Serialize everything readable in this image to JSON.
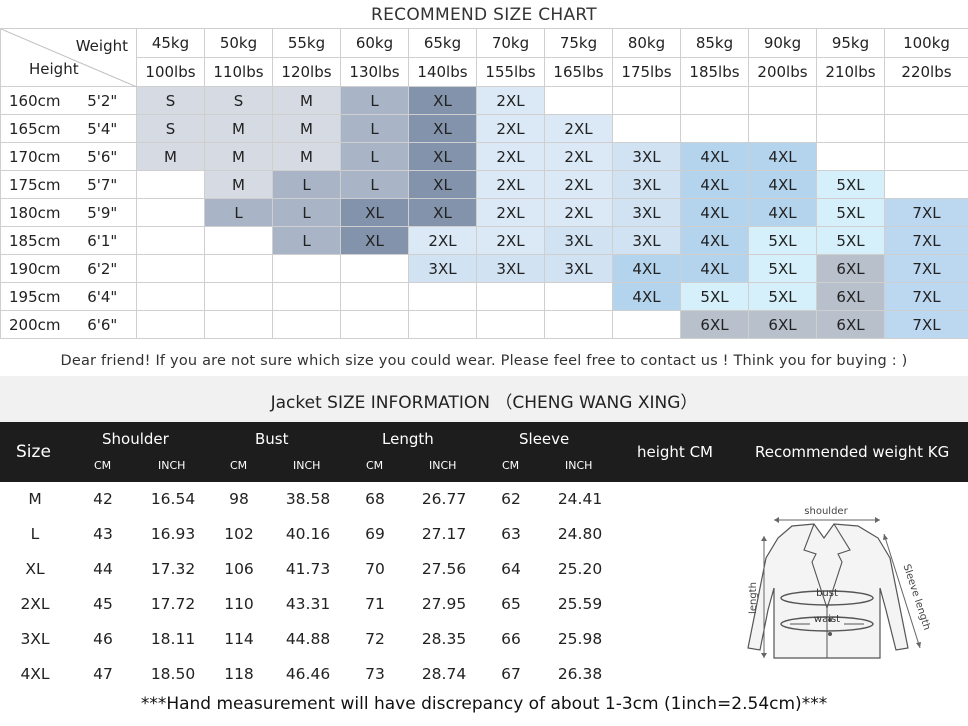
{
  "recommend": {
    "title": "RECOMMEND SIZE CHART",
    "weight_label": "Weight",
    "height_label": "Height",
    "weights_kg": [
      "45kg",
      "50kg",
      "55kg",
      "60kg",
      "65kg",
      "70kg",
      "75kg",
      "80kg",
      "85kg",
      "90kg",
      "95kg",
      "100kg"
    ],
    "weights_lbs": [
      "100lbs",
      "110lbs",
      "120lbs",
      "130lbs",
      "140lbs",
      "155lbs",
      "165lbs",
      "175lbs",
      "185lbs",
      "200lbs",
      "210lbs",
      "220lbs"
    ],
    "rows": [
      {
        "cm": "160cm",
        "ft": "5'2\"",
        "cells": [
          "S",
          "S",
          "M",
          "L",
          "XL",
          "2XL",
          "",
          "",
          "",
          "",
          "",
          ""
        ]
      },
      {
        "cm": "165cm",
        "ft": "5'4\"",
        "cells": [
          "S",
          "M",
          "M",
          "L",
          "XL",
          "2XL",
          "2XL",
          "",
          "",
          "",
          "",
          ""
        ]
      },
      {
        "cm": "170cm",
        "ft": "5'6\"",
        "cells": [
          "M",
          "M",
          "M",
          "L",
          "XL",
          "2XL",
          "2XL",
          "3XL",
          "4XL",
          "4XL",
          "",
          ""
        ]
      },
      {
        "cm": "175cm",
        "ft": "5'7\"",
        "cells": [
          "",
          "M",
          "L",
          "L",
          "XL",
          "2XL",
          "2XL",
          "3XL",
          "4XL",
          "4XL",
          "5XL",
          ""
        ]
      },
      {
        "cm": "180cm",
        "ft": "5'9\"",
        "cells": [
          "",
          "L",
          "L",
          "XL",
          "XL",
          "2XL",
          "2XL",
          "3XL",
          "4XL",
          "4XL",
          "5XL",
          "7XL"
        ]
      },
      {
        "cm": "185cm",
        "ft": "6'1\"",
        "cells": [
          "",
          "",
          "L",
          "XL",
          "2XL",
          "2XL",
          "3XL",
          "3XL",
          "4XL",
          "5XL",
          "5XL",
          "7XL"
        ]
      },
      {
        "cm": "190cm",
        "ft": "6'2\"",
        "cells": [
          "",
          "",
          "",
          "",
          "3XL",
          "3XL",
          "3XL",
          "4XL",
          "4XL",
          "5XL",
          "6XL",
          "7XL"
        ]
      },
      {
        "cm": "195cm",
        "ft": "6'4\"",
        "cells": [
          "",
          "",
          "",
          "",
          "",
          "",
          "",
          "4XL",
          "5XL",
          "5XL",
          "6XL",
          "7XL"
        ]
      },
      {
        "cm": "200cm",
        "ft": "6'6\"",
        "cells": [
          "",
          "",
          "",
          "",
          "",
          "",
          "",
          "",
          "6XL",
          "6XL",
          "6XL",
          "7XL"
        ]
      }
    ],
    "size_colors": {
      "S": "#d6dae3",
      "M": "#d6dae3",
      "L": "#a9b5c6",
      "XL": "#8293ab",
      "2XL": "#dbe9f7",
      "3XL": "#d1e2f3",
      "4XL": "#b4d4ee",
      "5XL": "#d6f0fb",
      "6XL": "#b7c0cb",
      "7XL": "#bcd7f0"
    },
    "note": "Dear friend! If you are not sure which size you could wear. Please feel free to contact us ! Think you for buying  : )"
  },
  "jacket": {
    "title": "Jacket  SIZE INFORMATION   （CHENG WANG XING）",
    "size_label": "Size",
    "groups": [
      "Shoulder",
      "Bust",
      "Length",
      "Sleeve"
    ],
    "unit_cm": "CM",
    "unit_inch": "INCH",
    "height_label": "height  CM",
    "weight_label": "Recommended weight KG",
    "rows": [
      {
        "size": "M",
        "v": [
          "42",
          "16.54",
          "98",
          "38.58",
          "68",
          "26.77",
          "62",
          "24.41"
        ]
      },
      {
        "size": "L",
        "v": [
          "43",
          "16.93",
          "102",
          "40.16",
          "69",
          "27.17",
          "63",
          "24.80"
        ]
      },
      {
        "size": "XL",
        "v": [
          "44",
          "17.32",
          "106",
          "41.73",
          "70",
          "27.56",
          "64",
          "25.20"
        ]
      },
      {
        "size": "2XL",
        "v": [
          "45",
          "17.72",
          "110",
          "43.31",
          "71",
          "27.95",
          "65",
          "25.59"
        ]
      },
      {
        "size": "3XL",
        "v": [
          "46",
          "18.11",
          "114",
          "44.88",
          "72",
          "28.35",
          "66",
          "25.98"
        ]
      },
      {
        "size": "4XL",
        "v": [
          "47",
          "18.50",
          "118",
          "46.46",
          "73",
          "28.74",
          "67",
          "26.38"
        ]
      }
    ],
    "figure_labels": {
      "shoulder": "shoulder",
      "length": "length",
      "bust": "bust",
      "waist": "waist",
      "sleeve": "Sleeve length"
    },
    "footer": "***Hand measurement will have discrepancy of about 1-3cm (1inch=2.54cm)***"
  }
}
